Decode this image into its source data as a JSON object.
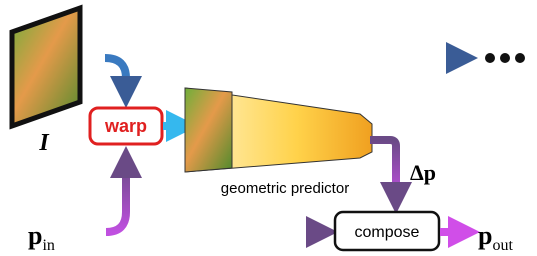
{
  "image_label": "I",
  "nodes": [
    {
      "label": "warp"
    },
    {
      "label": "geometric predictor"
    },
    {
      "label": "compose"
    }
  ],
  "inputs": {
    "symbol": "p",
    "subscript": "in"
  },
  "outputs": {
    "symbol": "p",
    "subscript": "out"
  },
  "delta": "Δp"
}
